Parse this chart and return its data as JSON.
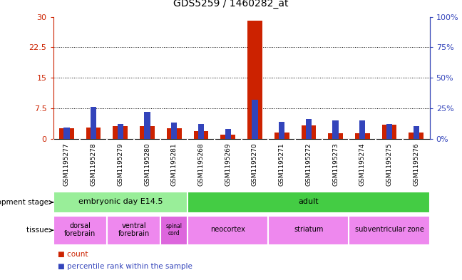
{
  "title": "GDS5259 / 1460282_at",
  "samples": [
    "GSM1195277",
    "GSM1195278",
    "GSM1195279",
    "GSM1195280",
    "GSM1195281",
    "GSM1195268",
    "GSM1195269",
    "GSM1195270",
    "GSM1195271",
    "GSM1195272",
    "GSM1195273",
    "GSM1195274",
    "GSM1195275",
    "GSM1195276"
  ],
  "count_values": [
    2.5,
    2.8,
    3.0,
    3.1,
    2.6,
    1.8,
    1.0,
    29.0,
    1.5,
    3.2,
    1.4,
    1.4,
    3.4,
    1.5
  ],
  "percentile_values": [
    9,
    26,
    12,
    22,
    13,
    12,
    8,
    32,
    14,
    16,
    15,
    15,
    12,
    10
  ],
  "ylim_left": [
    0,
    30
  ],
  "ylim_right": [
    0,
    100
  ],
  "yticks_left": [
    0,
    7.5,
    15,
    22.5,
    30
  ],
  "yticks_right": [
    0,
    25,
    50,
    75,
    100
  ],
  "ytick_labels_left": [
    "0",
    "7.5",
    "15",
    "22.5",
    "30"
  ],
  "ytick_labels_right": [
    "0%",
    "25%",
    "50%",
    "75%",
    "100%"
  ],
  "count_color": "#cc2200",
  "percentile_color": "#3344bb",
  "plot_bg_color": "#ffffff",
  "tick_bg_color": "#d0d0d0",
  "dev_stage_label": "development stage",
  "tissue_label": "tissue",
  "dev_stages": [
    {
      "label": "embryonic day E14.5",
      "start": 0,
      "end": 4,
      "color": "#99ee99"
    },
    {
      "label": "adult",
      "start": 5,
      "end": 13,
      "color": "#44cc44"
    }
  ],
  "tissues": [
    {
      "label": "dorsal\nforebrain",
      "start": 0,
      "end": 1,
      "color": "#ee88ee"
    },
    {
      "label": "ventral\nforebrain",
      "start": 2,
      "end": 3,
      "color": "#ee88ee"
    },
    {
      "label": "spinal\ncord",
      "start": 4,
      "end": 4,
      "color": "#dd66dd"
    },
    {
      "label": "neocortex",
      "start": 5,
      "end": 7,
      "color": "#ee88ee"
    },
    {
      "label": "striatum",
      "start": 8,
      "end": 10,
      "color": "#ee88ee"
    },
    {
      "label": "subventricular zone",
      "start": 11,
      "end": 13,
      "color": "#ee88ee"
    }
  ],
  "legend_count_label": "count",
  "legend_percentile_label": "percentile rank within the sample"
}
